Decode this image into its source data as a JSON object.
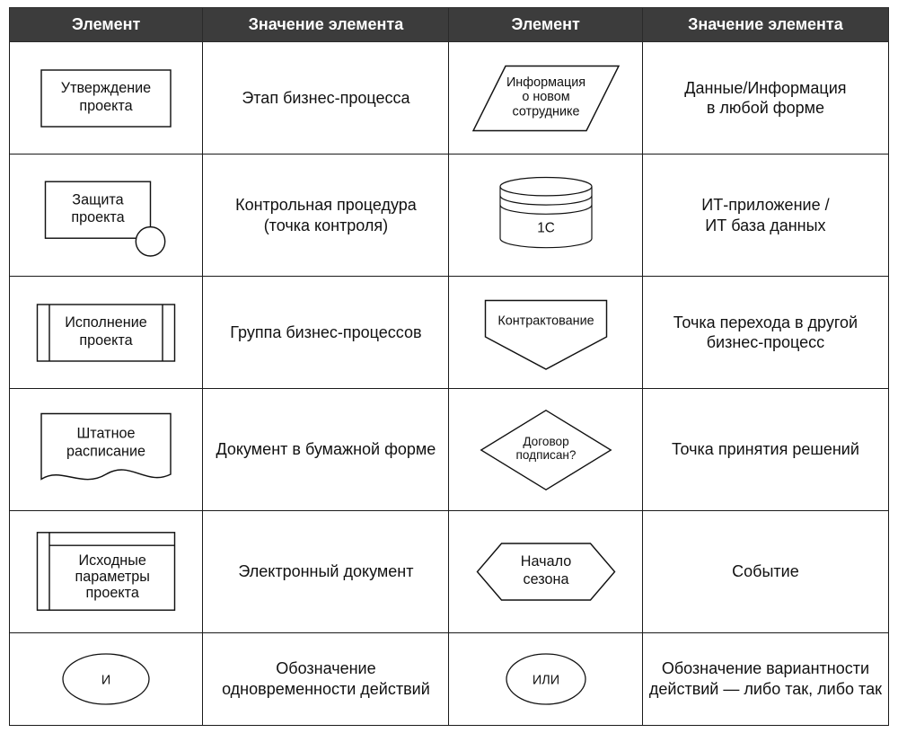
{
  "table": {
    "type": "table",
    "columns_widths_pct": [
      22,
      28,
      22,
      28
    ],
    "header_bg": "#3c3c3c",
    "header_fg": "#ffffff",
    "border_color": "#1a1a1a",
    "background_color": "#ffffff",
    "header_font_size_pt": 13,
    "body_font_size_pt": 13,
    "headers": [
      "Элемент",
      "Значение элемента",
      "Элемент",
      "Значение элемента"
    ],
    "rows": [
      {
        "left_shape": {
          "kind": "rect",
          "label_lines": [
            "Утверждение",
            "проекта"
          ],
          "stroke": "#111111",
          "fill": "none",
          "stroke_width": 1.6
        },
        "left_desc": "Этап бизнес-процесса",
        "right_shape": {
          "kind": "parallelogram",
          "label_lines": [
            "Информация",
            "о новом",
            "сотруднике"
          ],
          "stroke": "#111111",
          "fill": "none",
          "stroke_width": 1.6
        },
        "right_desc": "Данные/Информация\nв любой форме"
      },
      {
        "left_shape": {
          "kind": "rect_with_circle",
          "label_lines": [
            "Защита",
            "проекта"
          ],
          "stroke": "#111111",
          "fill": "none",
          "stroke_width": 1.6
        },
        "left_desc": "Контрольная процедура\n(точка контроля)",
        "right_shape": {
          "kind": "database",
          "label_lines": [
            "1С"
          ],
          "stroke": "#111111",
          "fill": "none",
          "stroke_width": 1.4
        },
        "right_desc": "ИТ-приложение /\nИТ база данных"
      },
      {
        "left_shape": {
          "kind": "rect_sidebars",
          "label_lines": [
            "Исполнение",
            "проекта"
          ],
          "stroke": "#111111",
          "fill": "none",
          "stroke_width": 1.6
        },
        "left_desc": "Группа бизнес-процессов",
        "right_shape": {
          "kind": "offpage",
          "label_lines": [
            "Контрактование"
          ],
          "stroke": "#111111",
          "fill": "none",
          "stroke_width": 1.6
        },
        "right_desc": "Точка перехода в другой\nбизнес-процесс"
      },
      {
        "left_shape": {
          "kind": "paper_doc",
          "label_lines": [
            "Штатное",
            "расписание"
          ],
          "stroke": "#111111",
          "fill": "none",
          "stroke_width": 1.6
        },
        "left_desc": "Документ в бумажной форме",
        "right_shape": {
          "kind": "diamond",
          "label_lines": [
            "Договор",
            "подписан?"
          ],
          "stroke": "#111111",
          "fill": "none",
          "stroke_width": 1.6
        },
        "right_desc": "Точка принятия решений"
      },
      {
        "left_shape": {
          "kind": "edoc",
          "label_lines": [
            "Исходные",
            "параметры",
            "проекта"
          ],
          "stroke": "#111111",
          "fill": "none",
          "stroke_width": 1.6
        },
        "left_desc": "Электронный документ",
        "right_shape": {
          "kind": "hexagon",
          "label_lines": [
            "Начало",
            "сезона"
          ],
          "stroke": "#111111",
          "fill": "none",
          "stroke_width": 1.6
        },
        "right_desc": "Событие"
      },
      {
        "left_shape": {
          "kind": "ellipse",
          "label_lines": [
            "И"
          ],
          "stroke": "#111111",
          "fill": "none",
          "stroke_width": 1.6
        },
        "left_desc": "Обозначение\nодновременности действий",
        "right_shape": {
          "kind": "ellipse",
          "label_lines": [
            "ИЛИ"
          ],
          "stroke": "#111111",
          "fill": "none",
          "stroke_width": 1.6
        },
        "right_desc": "Обозначение вариантности\nдействий — либо так, либо так"
      }
    ]
  }
}
